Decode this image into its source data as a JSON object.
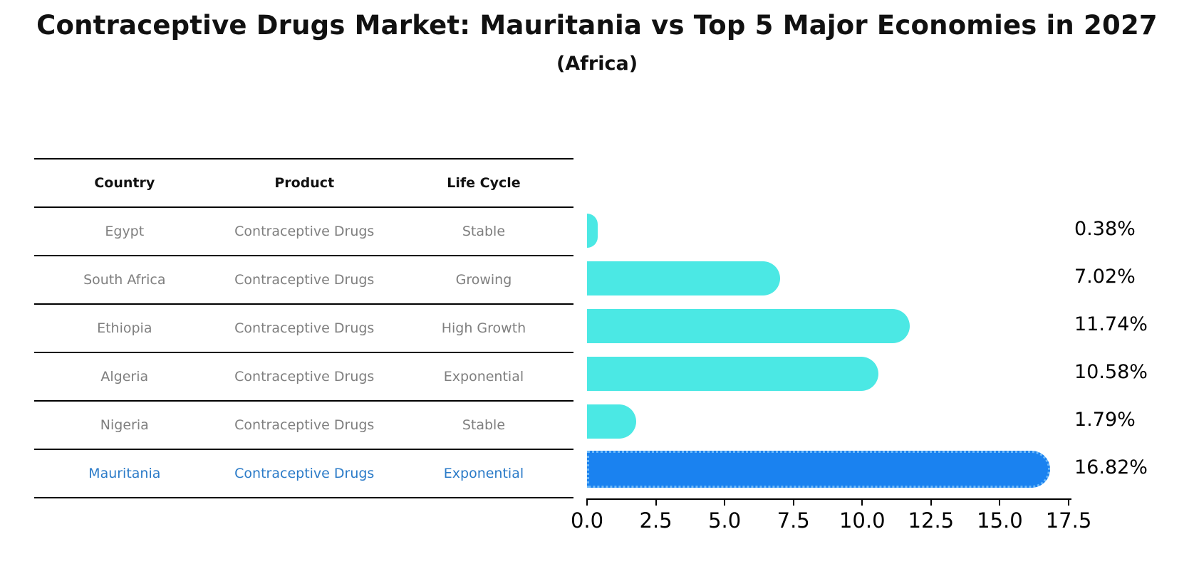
{
  "title": "Contraceptive Drugs Market: Mauritania vs Top 5 Major Economies in 2027",
  "subtitle": "(Africa)",
  "table": {
    "headers": [
      "Country",
      "Product",
      "Life Cycle"
    ],
    "rows": [
      {
        "country": "Egypt",
        "product": "Contraceptive Drugs",
        "life_cycle": "Stable",
        "highlight": false
      },
      {
        "country": "South Africa",
        "product": "Contraceptive Drugs",
        "life_cycle": "Growing",
        "highlight": false
      },
      {
        "country": "Ethiopia",
        "product": "Contraceptive Drugs",
        "life_cycle": "High Growth",
        "highlight": false
      },
      {
        "country": "Algeria",
        "product": "Contraceptive Drugs",
        "life_cycle": "Exponential",
        "highlight": false
      },
      {
        "country": "Nigeria",
        "product": "Contraceptive Drugs",
        "life_cycle": "Stable",
        "highlight": false
      },
      {
        "country": "Mauritania",
        "product": "Contraceptive Drugs",
        "life_cycle": "Exponential",
        "highlight": true
      }
    ]
  },
  "chart_data": {
    "type": "bar",
    "orientation": "horizontal",
    "categories": [
      "Egypt",
      "South Africa",
      "Ethiopia",
      "Algeria",
      "Nigeria",
      "Mauritania"
    ],
    "values": [
      0.38,
      7.02,
      11.74,
      10.58,
      1.79,
      16.82
    ],
    "value_labels": [
      "0.38%",
      "7.02%",
      "11.74%",
      "10.58%",
      "1.79%",
      "16.82%"
    ],
    "highlight_index": 5,
    "xlim": [
      0,
      17.5
    ],
    "xtick_labels": [
      "0.0",
      "2.5",
      "5.0",
      "7.5",
      "10.0",
      "12.5",
      "15.0",
      "17.5"
    ],
    "grid": false,
    "legend": "none",
    "title": "Contraceptive Drugs Market: Mauritania vs Top 5 Major Economies in 2027",
    "subtitle": "(Africa)",
    "xlabel": "",
    "ylabel": ""
  },
  "colors": {
    "bar": "#4be8e4",
    "highlight_bar": "#1a82f0",
    "highlight_border": "#6cb8f8",
    "text_muted": "#7f7f7f",
    "text_highlight": "#2b7bc8",
    "text": "#111111"
  }
}
